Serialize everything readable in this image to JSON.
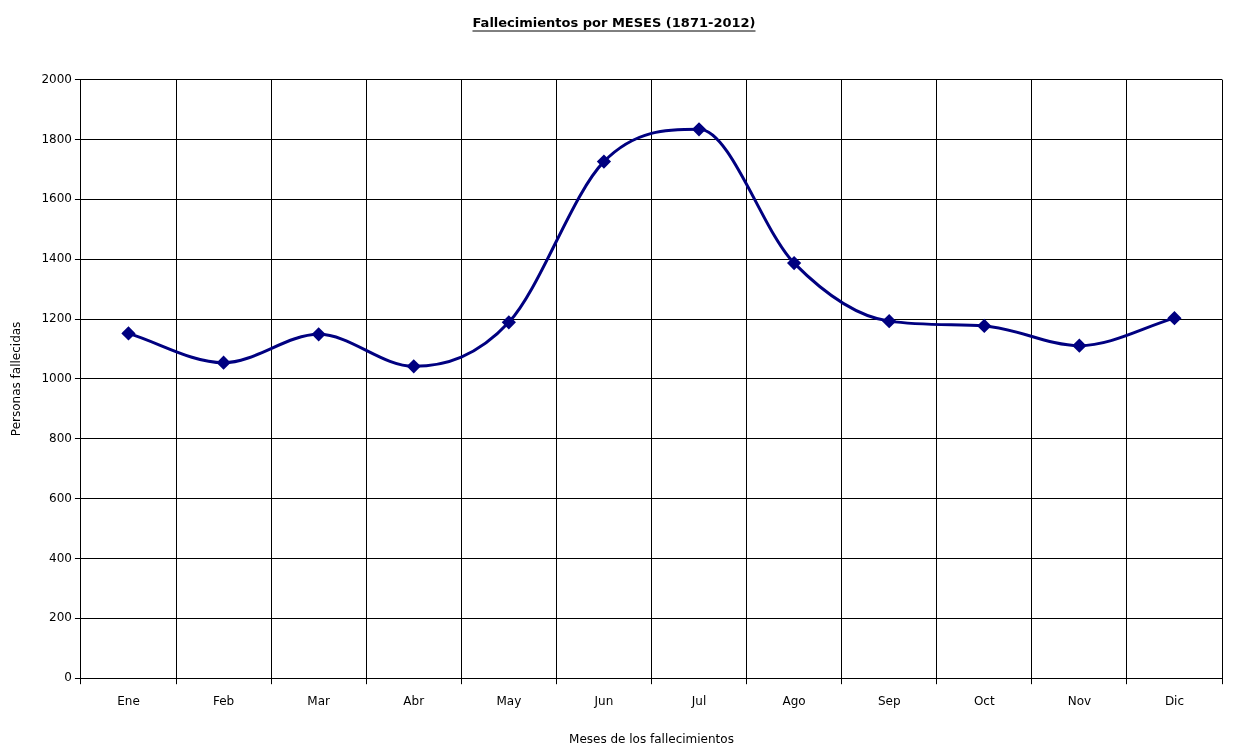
{
  "chart_data": {
    "type": "line",
    "title": "Fallecimientos por MESES (1871-2012)",
    "xlabel": "Meses de los fallecimientos",
    "ylabel": "Personas fallecidas",
    "categories": [
      "Ene",
      "Feb",
      "Mar",
      "Abr",
      "May",
      "Jun",
      "Jul",
      "Ago",
      "Sep",
      "Oct",
      "Nov",
      "Dic"
    ],
    "series": [
      {
        "color": "#000080",
        "values": [
          1152,
          1054,
          1149,
          1042,
          1189,
          1726,
          1834,
          1387,
          1193,
          1177,
          1111,
          1203
        ]
      }
    ],
    "ylim": [
      0,
      2000
    ],
    "yticks": [
      0,
      200,
      400,
      600,
      800,
      1000,
      1200,
      1400,
      1600,
      1800,
      2000
    ],
    "grid": true,
    "legend": false,
    "marker": "diamond",
    "line_style": "solid"
  }
}
